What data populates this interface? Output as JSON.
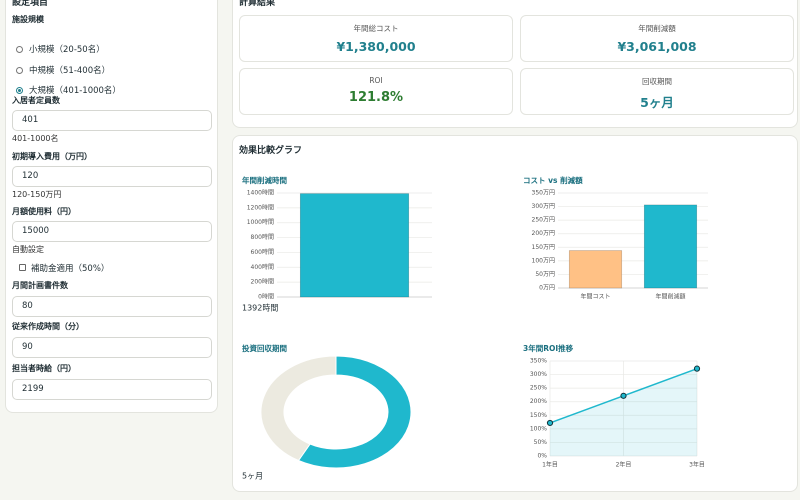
{
  "sidebar": {
    "title": "設定項目",
    "facility_label": "施設規模",
    "options": [
      {
        "label": "小規模（20-50名）",
        "checked": false
      },
      {
        "label": "中規模（51-400名）",
        "checked": false
      },
      {
        "label": "大規模（401-1000名）",
        "checked": true
      }
    ],
    "fields": [
      {
        "label": "入居者定員数",
        "value": "401",
        "hint": "401-1000名"
      },
      {
        "label": "初期導入費用（万円）",
        "value": "120",
        "hint": "120-150万円"
      },
      {
        "label": "月額使用料（円）",
        "value": "15000",
        "hint": "自動設定"
      }
    ],
    "subsidy": {
      "label": "補助金適用（50%）",
      "checked": false
    },
    "fields2": [
      {
        "label": "月間計画書件数",
        "value": "80"
      },
      {
        "label": "従来作成時間（分）",
        "value": "90"
      },
      {
        "label": "担当者時給（円）",
        "value": "2199"
      }
    ]
  },
  "results": {
    "title": "計算結果",
    "items": [
      {
        "label": "年間総コスト",
        "value": "¥1,380,000"
      },
      {
        "label": "年間削減額",
        "value": "¥3,061,008"
      },
      {
        "label": "ROI",
        "value": "121.8%"
      },
      {
        "label": "回収期間",
        "value": "5ヶ月"
      }
    ]
  },
  "graphs": {
    "title": "効果比較グラフ"
  },
  "chart_data": [
    {
      "type": "bar",
      "title": "年間削減時間",
      "categories": [
        null
      ],
      "values": [
        1392
      ],
      "colors": [
        "#1fb8cd"
      ],
      "ylim": [
        0,
        1400
      ],
      "yticks": [
        {
          "value": 0,
          "label": "0時間"
        },
        {
          "value": 200,
          "label": "200時間"
        },
        {
          "value": 400,
          "label": "400時間"
        },
        {
          "value": 600,
          "label": "600時間"
        },
        {
          "value": 800,
          "label": "800時間"
        },
        {
          "value": 1000,
          "label": "1000時間"
        },
        {
          "value": 1200,
          "label": "1200時間"
        },
        {
          "value": 1400,
          "label": "1400時間"
        }
      ],
      "caption": "1392時間"
    },
    {
      "type": "bar",
      "title": "コスト vs 削減額",
      "categories": [
        "年間コスト",
        "年間削減額"
      ],
      "values": [
        138,
        306.1
      ],
      "colors": [
        "#ffc185",
        "#1fb8cd"
      ],
      "ylim": [
        0,
        350
      ],
      "yticks": [
        {
          "value": 0,
          "label": "0万円"
        },
        {
          "value": 50,
          "label": "50万円"
        },
        {
          "value": 100,
          "label": "100万円"
        },
        {
          "value": 150,
          "label": "150万円"
        },
        {
          "value": 200,
          "label": "200万円"
        },
        {
          "value": 250,
          "label": "250万円"
        },
        {
          "value": 300,
          "label": "300万円"
        },
        {
          "value": 350,
          "label": "350万円"
        }
      ]
    },
    {
      "type": "doughnut",
      "title": "投資回収期間",
      "values": [
        7,
        5
      ],
      "colors": [
        "#1fb8cd",
        "#eceae0"
      ],
      "caption": "5ヶ月"
    },
    {
      "type": "line",
      "title": "3年間ROI推移",
      "categories": [
        "1年目",
        "2年目",
        "3年目"
      ],
      "series": [
        {
          "values": [
            121.8,
            221.8,
            321.8
          ],
          "color": "#1fb8cd"
        }
      ],
      "ylim": [
        0,
        350
      ],
      "yticks": [
        {
          "value": 0,
          "label": "0%"
        },
        {
          "value": 50,
          "label": "50%"
        },
        {
          "value": 100,
          "label": "100%"
        },
        {
          "value": 150,
          "label": "150%"
        },
        {
          "value": 200,
          "label": "200%"
        },
        {
          "value": 250,
          "label": "250%"
        },
        {
          "value": 300,
          "label": "300%"
        },
        {
          "value": 350,
          "label": "350%"
        }
      ]
    }
  ]
}
